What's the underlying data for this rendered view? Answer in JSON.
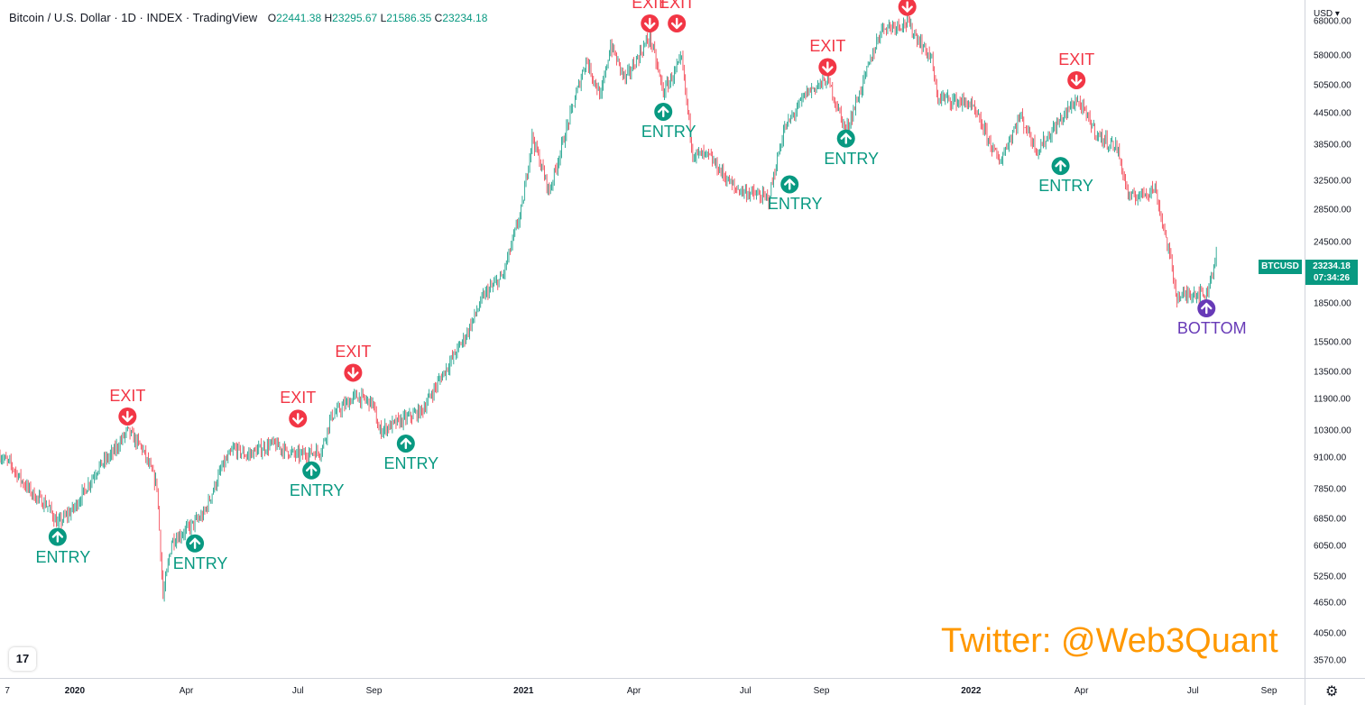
{
  "header": {
    "symbol": "Bitcoin / U.S. Dollar",
    "interval": "1D",
    "exchange": "INDEX",
    "source": "TradingView",
    "open_k": "O",
    "open_v": "22441.38",
    "high_k": "H",
    "high_v": "23295.67",
    "low_k": "L",
    "low_v": "21586.35",
    "close_k": "C",
    "close_v": "23234.18"
  },
  "currency": "USD",
  "currency_arrow": "▾",
  "last_tag": {
    "symbol": "BTCUSD",
    "price": "23234.18",
    "countdown": "07:34:26"
  },
  "watermark": "Twitter: @Web3Quant",
  "logo_text": "17",
  "settings_icon": "gear-icon",
  "colors": {
    "up": "#089981",
    "down": "#f23645",
    "bottom": "#673ab7",
    "watermark": "#ff9800"
  },
  "chart_data": {
    "type": "candlestick",
    "scale": "log",
    "x_range": [
      "2019-11-01",
      "2022-09-30"
    ],
    "y_range": [
      3300,
      75000
    ],
    "price_ticks": [
      "68000.00",
      "58000.00",
      "50500.00",
      "44500.00",
      "38500.00",
      "32500.00",
      "28500.00",
      "24500.00",
      "18500.00",
      "15500.00",
      "13500.00",
      "11900.00",
      "10300.00",
      "9100.00",
      "7850.00",
      "6850.00",
      "6050.00",
      "5250.00",
      "4650.00",
      "4050.00",
      "3570.00"
    ],
    "time_ticks": [
      {
        "label": "7",
        "date": "2019-11-07",
        "bold": false
      },
      {
        "label": "2020",
        "date": "2020-01-01",
        "bold": true
      },
      {
        "label": "Apr",
        "date": "2020-04-01",
        "bold": false
      },
      {
        "label": "Jul",
        "date": "2020-07-01",
        "bold": false
      },
      {
        "label": "Sep",
        "date": "2020-09-01",
        "bold": false
      },
      {
        "label": "2021",
        "date": "2021-01-01",
        "bold": true
      },
      {
        "label": "Apr",
        "date": "2021-04-01",
        "bold": false
      },
      {
        "label": "Jul",
        "date": "2021-07-01",
        "bold": false
      },
      {
        "label": "Sep",
        "date": "2021-09-01",
        "bold": false
      },
      {
        "label": "2022",
        "date": "2022-01-01",
        "bold": true
      },
      {
        "label": "Apr",
        "date": "2022-04-01",
        "bold": false
      },
      {
        "label": "Jul",
        "date": "2022-07-01",
        "bold": false
      },
      {
        "label": "Sep",
        "date": "2022-09-01",
        "bold": false
      }
    ],
    "price_path": [
      [
        "2019-11-01",
        9200
      ],
      [
        "2019-11-10",
        8800
      ],
      [
        "2019-11-20",
        8100
      ],
      [
        "2019-11-30",
        7600
      ],
      [
        "2019-12-10",
        7300
      ],
      [
        "2019-12-18",
        6700
      ],
      [
        "2019-12-31",
        7200
      ],
      [
        "2020-01-10",
        7900
      ],
      [
        "2020-01-20",
        8700
      ],
      [
        "2020-02-01",
        9300
      ],
      [
        "2020-02-13",
        10300
      ],
      [
        "2020-02-25",
        9500
      ],
      [
        "2020-03-08",
        8000
      ],
      [
        "2020-03-13",
        4800
      ],
      [
        "2020-03-20",
        6200
      ],
      [
        "2020-03-31",
        6500
      ],
      [
        "2020-04-15",
        7000
      ],
      [
        "2020-04-30",
        8700
      ],
      [
        "2020-05-10",
        9500
      ],
      [
        "2020-05-20",
        9200
      ],
      [
        "2020-06-10",
        9700
      ],
      [
        "2020-06-30",
        9200
      ],
      [
        "2020-07-20",
        9400
      ],
      [
        "2020-07-28",
        11000
      ],
      [
        "2020-08-17",
        12100
      ],
      [
        "2020-08-31",
        11700
      ],
      [
        "2020-09-05",
        10300
      ],
      [
        "2020-09-20",
        10700
      ],
      [
        "2020-10-10",
        11300
      ],
      [
        "2020-10-25",
        13100
      ],
      [
        "2020-11-15",
        16000
      ],
      [
        "2020-11-30",
        19300
      ],
      [
        "2020-12-15",
        21000
      ],
      [
        "2020-12-31",
        29000
      ],
      [
        "2021-01-08",
        40000
      ],
      [
        "2021-01-22",
        31000
      ],
      [
        "2021-02-08",
        44000
      ],
      [
        "2021-02-21",
        57000
      ],
      [
        "2021-03-05",
        48000
      ],
      [
        "2021-03-13",
        61000
      ],
      [
        "2021-03-25",
        52000
      ],
      [
        "2021-04-14",
        63500
      ],
      [
        "2021-04-25",
        49000
      ],
      [
        "2021-05-10",
        57000
      ],
      [
        "2021-05-19",
        37000
      ],
      [
        "2021-06-01",
        36500
      ],
      [
        "2021-06-22",
        31500
      ],
      [
        "2021-07-20",
        30000
      ],
      [
        "2021-08-01",
        41000
      ],
      [
        "2021-08-20",
        49000
      ],
      [
        "2021-09-06",
        52000
      ],
      [
        "2021-09-21",
        41000
      ],
      [
        "2021-10-01",
        48000
      ],
      [
        "2021-10-20",
        66000
      ],
      [
        "2021-11-10",
        67500
      ],
      [
        "2021-11-30",
        57000
      ],
      [
        "2021-12-04",
        48000
      ],
      [
        "2021-12-31",
        46500
      ],
      [
        "2022-01-10",
        42000
      ],
      [
        "2022-01-24",
        35500
      ],
      [
        "2022-02-10",
        44000
      ],
      [
        "2022-02-24",
        37500
      ],
      [
        "2022-03-28",
        47500
      ],
      [
        "2022-04-15",
        40000
      ],
      [
        "2022-04-30",
        38000
      ],
      [
        "2022-05-10",
        30000
      ],
      [
        "2022-05-31",
        31500
      ],
      [
        "2022-06-13",
        22500
      ],
      [
        "2022-06-18",
        19000
      ],
      [
        "2022-07-01",
        19500
      ],
      [
        "2022-07-12",
        19300
      ],
      [
        "2022-07-20",
        23234
      ]
    ],
    "signals": [
      {
        "type": "entry",
        "date": "2019-12-18",
        "price": 6700,
        "label": "ENTRY"
      },
      {
        "type": "exit",
        "date": "2020-02-13",
        "price": 10300,
        "label": "EXIT"
      },
      {
        "type": "entry",
        "date": "2020-04-08",
        "price": 6500,
        "label": "ENTRY"
      },
      {
        "type": "exit",
        "date": "2020-07-01",
        "price": 10200,
        "label": "EXIT"
      },
      {
        "type": "entry",
        "date": "2020-07-12",
        "price": 9100,
        "label": "ENTRY"
      },
      {
        "type": "exit",
        "date": "2020-08-15",
        "price": 12600,
        "label": "EXIT"
      },
      {
        "type": "entry",
        "date": "2020-09-27",
        "price": 10300,
        "label": "ENTRY"
      },
      {
        "type": "exit",
        "date": "2021-04-14",
        "price": 63000,
        "label": "EXIT"
      },
      {
        "type": "entry",
        "date": "2021-04-25",
        "price": 47500,
        "label": "ENTRY"
      },
      {
        "type": "exit",
        "date": "2021-05-06",
        "price": 63000,
        "label": "EXIT"
      },
      {
        "type": "entry",
        "date": "2021-08-06",
        "price": 34000,
        "label": "ENTRY"
      },
      {
        "type": "exit",
        "date": "2021-09-06",
        "price": 51500,
        "label": "EXIT"
      },
      {
        "type": "entry",
        "date": "2021-09-21",
        "price": 42000,
        "label": "ENTRY"
      },
      {
        "type": "exit",
        "date": "2021-11-10",
        "price": 68000,
        "label": "EXIT"
      },
      {
        "type": "entry",
        "date": "2022-03-15",
        "price": 37000,
        "label": "ENTRY"
      },
      {
        "type": "exit",
        "date": "2022-03-28",
        "price": 48500,
        "label": "EXIT"
      },
      {
        "type": "bottom",
        "date": "2022-07-12",
        "price": 19200,
        "label": "BOTTOM"
      }
    ]
  }
}
